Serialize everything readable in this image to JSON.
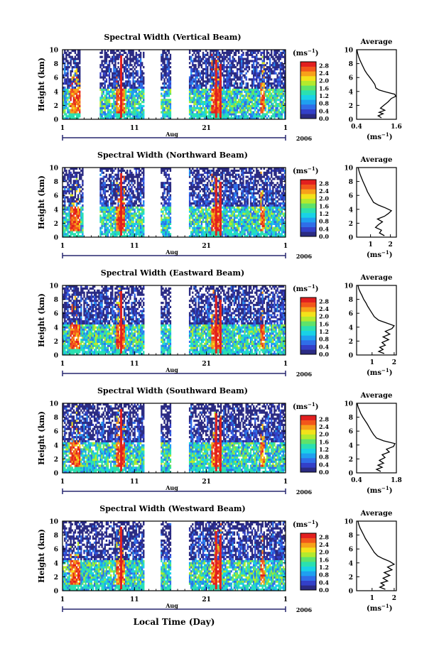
{
  "figure": {
    "xlabel_bottom": "Local Time (Day)",
    "month_label": "Aug",
    "year_label": "2006",
    "cbar_unit": "(ms",
    "cbar_unit_exp": "−1",
    "cbar_unit_close": ")"
  },
  "chart_data": [
    {
      "type": "heatmap",
      "title": "Spectral Width (Vertical Beam)",
      "ylabel": "Height (km)",
      "xlabel": "Aug",
      "x_ticks": [
        "1",
        "11",
        "21",
        "1"
      ],
      "x_range_days": [
        1,
        32
      ],
      "ylim": [
        0,
        10
      ],
      "y_ticks": [
        "0",
        "2",
        "4",
        "6",
        "8",
        "10"
      ],
      "colorbar": {
        "ticks": [
          "0.0",
          "0.4",
          "0.8",
          "1.2",
          "1.6",
          "2.0",
          "2.4",
          "2.8"
        ],
        "range": [
          0,
          3.0
        ]
      },
      "gaps_days": [
        [
          3.5,
          6.2
        ],
        [
          12.3,
          14.6
        ],
        [
          16.0,
          18.6
        ]
      ],
      "profile": {
        "title": "Average",
        "xlabel": "(ms",
        "x_ticks": [
          "0.4",
          "1.6"
        ],
        "xlim": [
          0.4,
          1.6
        ],
        "ylim": [
          0,
          10
        ],
        "y_ticks": [
          "0",
          "2",
          "4",
          "6",
          "8",
          "10"
        ],
        "height_km": [
          0.2,
          0.5,
          0.8,
          1.0,
          1.3,
          1.6,
          2.0,
          2.5,
          3.0,
          3.3,
          3.6,
          3.9,
          4.2,
          4.5,
          5.0,
          5.5,
          6.0,
          6.5,
          7.0,
          7.5,
          8.0,
          8.5,
          9.0,
          9.5,
          10.0
        ],
        "width_ms": [
          1.15,
          1.05,
          1.2,
          1.08,
          1.25,
          1.12,
          1.22,
          1.35,
          1.45,
          1.58,
          1.55,
          1.3,
          1.08,
          0.98,
          0.95,
          0.88,
          0.8,
          0.72,
          0.65,
          0.6,
          0.55,
          0.5,
          0.46,
          0.43,
          0.41
        ]
      }
    },
    {
      "type": "heatmap",
      "title": "Spectral Width (Northward Beam)",
      "ylabel": "Height (km)",
      "xlabel": "Aug",
      "x_ticks": [
        "1",
        "11",
        "21",
        "1"
      ],
      "x_range_days": [
        1,
        32
      ],
      "ylim": [
        0,
        10
      ],
      "y_ticks": [
        "0",
        "2",
        "4",
        "6",
        "8",
        "10"
      ],
      "colorbar": {
        "ticks": [
          "0.0",
          "0.4",
          "0.8",
          "1.2",
          "1.6",
          "2.0",
          "2.4",
          "2.8"
        ],
        "range": [
          0,
          3.0
        ]
      },
      "gaps_days": [
        [
          3.8,
          6.2
        ],
        [
          12.3,
          14.6
        ],
        [
          16.0,
          18.6
        ]
      ],
      "profile": {
        "title": "Average",
        "xlabel": "(ms",
        "x_ticks": [
          "1",
          "2"
        ],
        "xlim": [
          0.3,
          2.3
        ],
        "ylim": [
          0,
          10
        ],
        "y_ticks": [
          "0",
          "2",
          "4",
          "6",
          "8",
          "10"
        ],
        "height_km": [
          0.2,
          0.6,
          1.0,
          1.4,
          1.8,
          2.2,
          2.6,
          3.0,
          3.4,
          3.8,
          4.2,
          4.6,
          5.0,
          5.5,
          6.0,
          6.5,
          7.0,
          7.5,
          8.0,
          8.5,
          9.0,
          9.5,
          10.0
        ],
        "width_ms": [
          1.7,
          1.45,
          1.55,
          1.25,
          1.4,
          1.6,
          1.35,
          1.7,
          1.9,
          2.05,
          1.75,
          1.4,
          1.15,
          1.05,
          0.95,
          0.85,
          0.78,
          0.7,
          0.62,
          0.55,
          0.48,
          0.42,
          0.38
        ]
      }
    },
    {
      "type": "heatmap",
      "title": "Spectral Width (Eastward Beam)",
      "ylabel": "Height (km)",
      "xlabel": "Aug",
      "x_ticks": [
        "1",
        "11",
        "21",
        "1"
      ],
      "x_range_days": [
        1,
        32
      ],
      "ylim": [
        0,
        10
      ],
      "y_ticks": [
        "0",
        "2",
        "4",
        "6",
        "8",
        "10"
      ],
      "colorbar": {
        "ticks": [
          "0.0",
          "0.4",
          "0.8",
          "1.2",
          "1.6",
          "2.0",
          "2.4",
          "2.8"
        ],
        "range": [
          0,
          3.0
        ]
      },
      "gaps_days": [
        [
          12.3,
          14.6
        ],
        [
          16.0,
          18.6
        ]
      ],
      "profile": {
        "title": "Average",
        "xlabel": "(ms",
        "x_ticks": [
          "1",
          "2"
        ],
        "xlim": [
          0.3,
          2.1
        ],
        "ylim": [
          0,
          10
        ],
        "y_ticks": [
          "0",
          "2",
          "4",
          "6",
          "8",
          "10"
        ],
        "height_km": [
          0.2,
          0.5,
          0.8,
          1.1,
          1.4,
          1.8,
          2.2,
          2.6,
          3.0,
          3.4,
          3.8,
          4.2,
          4.6,
          5.0,
          5.5,
          6.0,
          6.5,
          7.0,
          7.5,
          8.0,
          8.5,
          9.0,
          9.5,
          10.0
        ],
        "width_ms": [
          1.55,
          1.3,
          1.5,
          1.35,
          1.6,
          1.45,
          1.75,
          1.5,
          1.8,
          1.6,
          1.9,
          2.0,
          1.65,
          1.3,
          1.1,
          1.0,
          0.9,
          0.8,
          0.72,
          0.62,
          0.55,
          0.47,
          0.4,
          0.36
        ]
      }
    },
    {
      "type": "heatmap",
      "title": "Spectral Width (Southward Beam)",
      "ylabel": "Height (km)",
      "xlabel": "Aug",
      "x_ticks": [
        "1",
        "11",
        "21",
        "1"
      ],
      "x_range_days": [
        1,
        32
      ],
      "ylim": [
        0,
        10
      ],
      "y_ticks": [
        "0",
        "2",
        "4",
        "6",
        "8",
        "10"
      ],
      "colorbar": {
        "ticks": [
          "0.0",
          "0.4",
          "0.8",
          "1.2",
          "1.6",
          "2.0",
          "2.4",
          "2.8"
        ],
        "range": [
          0,
          3.0
        ]
      },
      "gaps_days": [
        [
          12.3,
          14.6
        ],
        [
          16.0,
          18.6
        ]
      ],
      "profile": {
        "title": "Average",
        "xlabel": "(ms",
        "x_ticks": [
          "0.4",
          "1.8"
        ],
        "xlim": [
          0.4,
          1.8
        ],
        "ylim": [
          0,
          10
        ],
        "y_ticks": [
          "0",
          "2",
          "4",
          "6",
          "8",
          "10"
        ],
        "height_km": [
          0.2,
          0.5,
          0.8,
          1.1,
          1.4,
          1.8,
          2.2,
          2.6,
          3.0,
          3.4,
          3.8,
          4.2,
          4.6,
          5.0,
          5.5,
          6.0,
          6.5,
          7.0,
          7.5,
          8.0,
          8.5,
          9.0,
          9.5,
          10.0
        ],
        "width_ms": [
          1.25,
          1.1,
          1.3,
          1.15,
          1.35,
          1.2,
          1.4,
          1.3,
          1.55,
          1.45,
          1.7,
          1.75,
          1.35,
          1.1,
          1.0,
          0.92,
          0.85,
          0.78,
          0.7,
          0.62,
          0.55,
          0.5,
          0.45,
          0.42
        ]
      }
    },
    {
      "type": "heatmap",
      "title": "Spectral Width (Westward Beam)",
      "ylabel": "Height (km)",
      "xlabel": "Aug",
      "x_ticks": [
        "1",
        "11",
        "21",
        "1"
      ],
      "x_range_days": [
        1,
        32
      ],
      "ylim": [
        0,
        10
      ],
      "y_ticks": [
        "0",
        "2",
        "4",
        "6",
        "8",
        "10"
      ],
      "colorbar": {
        "ticks": [
          "0.0",
          "0.4",
          "0.8",
          "1.2",
          "1.6",
          "2.0",
          "2.4",
          "2.8"
        ],
        "range": [
          0,
          3.0
        ]
      },
      "gaps_days": [
        [
          12.3,
          14.6
        ],
        [
          16.0,
          18.6
        ]
      ],
      "profile": {
        "title": "Average",
        "xlabel": "(ms",
        "x_ticks": [
          "1",
          "2"
        ],
        "xlim": [
          0.3,
          2.1
        ],
        "ylim": [
          0,
          10
        ],
        "y_ticks": [
          "0",
          "2",
          "4",
          "6",
          "8",
          "10"
        ],
        "height_km": [
          0.2,
          0.5,
          0.8,
          1.1,
          1.4,
          1.8,
          2.2,
          2.6,
          3.0,
          3.4,
          3.8,
          4.2,
          4.6,
          5.0,
          5.5,
          6.0,
          6.5,
          7.0,
          7.5,
          8.0,
          8.5,
          9.0,
          9.5,
          10.0
        ],
        "width_ms": [
          1.6,
          1.35,
          1.55,
          1.4,
          1.7,
          1.5,
          1.8,
          1.55,
          1.9,
          1.7,
          2.0,
          1.8,
          1.5,
          1.25,
          1.1,
          1.0,
          0.9,
          0.8,
          0.7,
          0.62,
          0.54,
          0.46,
          0.4,
          0.36
        ]
      }
    }
  ],
  "colors": {
    "colormap": [
      "#2b2b83",
      "#3340c8",
      "#2f6ee8",
      "#1fa0f0",
      "#19d2e6",
      "#2be0b0",
      "#5fe36a",
      "#b4ea2d",
      "#f3e21a",
      "#f7a11a",
      "#f2561b",
      "#e21f1f"
    ]
  }
}
